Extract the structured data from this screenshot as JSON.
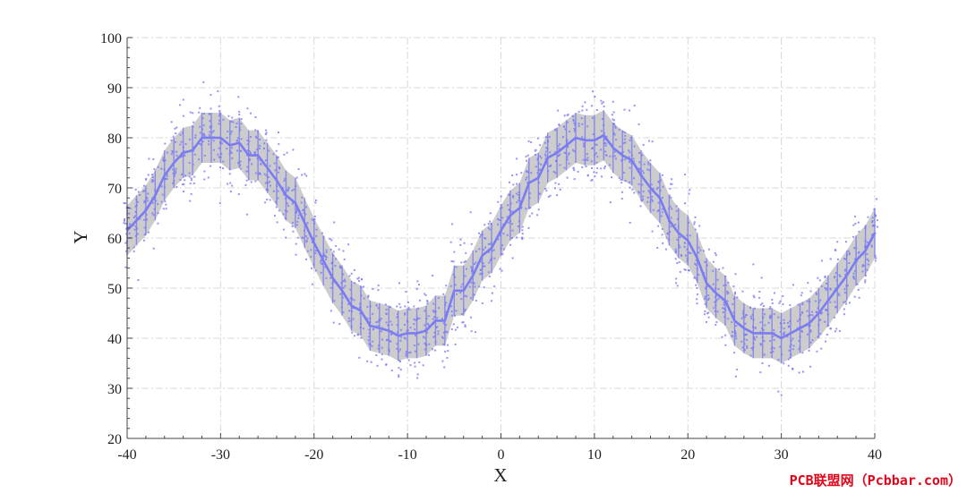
{
  "chart_data": {
    "type": "scatter",
    "xlabel": "X",
    "ylabel": "Y",
    "xlim": [
      -40,
      40
    ],
    "ylim": [
      20,
      100
    ],
    "xticks": [
      -40,
      -30,
      -20,
      -10,
      0,
      10,
      20,
      30,
      40
    ],
    "yticks": [
      20,
      30,
      40,
      50,
      60,
      70,
      80,
      90,
      100
    ],
    "grid": true,
    "grid_style": "dash-dot",
    "band_width": 5,
    "x": [
      -40,
      -39,
      -38,
      -37,
      -36,
      -35,
      -34,
      -33,
      -32,
      -31,
      -30,
      -29,
      -28,
      -27,
      -26,
      -25,
      -24,
      -23,
      -22,
      -21,
      -20,
      -19,
      -18,
      -17,
      -16,
      -15,
      -14,
      -13,
      -12,
      -11,
      -10,
      -9,
      -8,
      -7,
      -6,
      -5,
      -4,
      -3,
      -2,
      -1,
      0,
      1,
      2,
      3,
      4,
      5,
      6,
      7,
      8,
      9,
      10,
      11,
      12,
      13,
      14,
      15,
      16,
      17,
      18,
      19,
      20,
      21,
      22,
      23,
      24,
      25,
      26,
      27,
      28,
      29,
      30,
      31,
      32,
      33,
      34,
      35,
      36,
      37,
      38,
      39,
      40
    ],
    "mean": [
      61.5,
      63.5,
      65.5,
      68.5,
      72.5,
      75.0,
      77.0,
      77.5,
      80.0,
      80.0,
      80.0,
      78.5,
      79.0,
      76.5,
      76.5,
      74.0,
      71.5,
      68.5,
      67.0,
      63.0,
      59.0,
      55.5,
      52.0,
      49.5,
      46.5,
      45.5,
      42.5,
      42.0,
      41.5,
      40.5,
      41.0,
      41.0,
      41.5,
      43.5,
      43.5,
      49.5,
      49.5,
      52.5,
      56.5,
      58.0,
      61.5,
      64.5,
      66.0,
      71.0,
      72.0,
      76.0,
      77.0,
      78.5,
      80.0,
      79.5,
      79.5,
      80.5,
      78.0,
      76.5,
      75.5,
      72.5,
      70.0,
      68.0,
      63.5,
      61.0,
      59.5,
      56.0,
      51.0,
      49.0,
      47.5,
      43.5,
      42.0,
      41.0,
      41.0,
      41.0,
      40.0,
      41.0,
      42.0,
      43.0,
      45.0,
      47.5,
      50.0,
      52.5,
      55.5,
      57.5,
      61.0
    ],
    "scatter_points_per_x": 22,
    "scatter_spread": 4.5,
    "colors": {
      "line": "#7b7bf2",
      "points": "#7b7bf2",
      "band": "#c3c3c3",
      "grid": "#d8d8d8",
      "axis": "#444444"
    }
  },
  "watermark": "PCB联盟网（Pcbbar.com）"
}
